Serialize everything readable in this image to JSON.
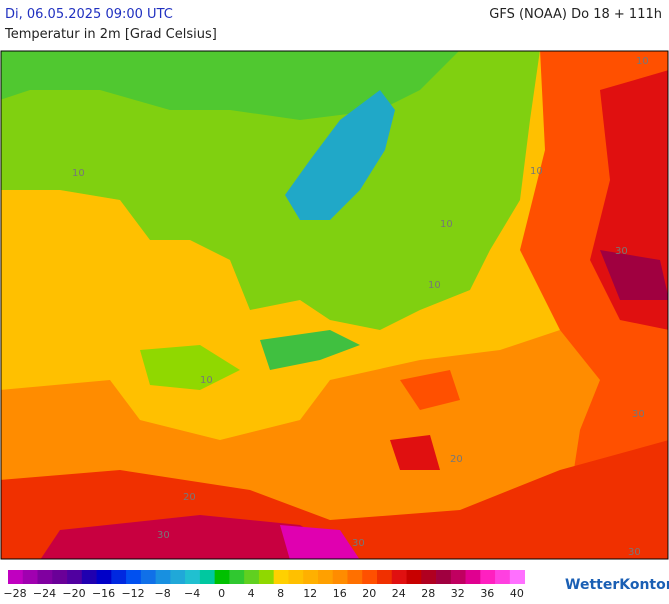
{
  "header": {
    "datetime": "Di, 06.05.2025 09:00 UTC",
    "model": "GFS (NOAA) Do 18 + 111h",
    "subtitle": "Temperatur in 2m [Grad Celsius]"
  },
  "map": {
    "contour_labels": [
      10,
      10,
      10,
      10,
      10,
      10,
      20,
      20,
      30,
      30,
      30,
      30,
      30
    ]
  },
  "legend": {
    "labels": [
      "−28",
      "−24",
      "−20",
      "−16",
      "−12",
      "−8",
      "−4",
      "0",
      "4",
      "8",
      "12",
      "16",
      "20",
      "24",
      "28",
      "32",
      "36",
      "40"
    ],
    "colors": [
      "#c000c0",
      "#a000b0",
      "#8000a0",
      "#6a0098",
      "#5000a0",
      "#2000b0",
      "#0000c8",
      "#0028e0",
      "#0050f0",
      "#1070e8",
      "#1890e0",
      "#20a8d8",
      "#20c0d0",
      "#00c8a0",
      "#00c000",
      "#30c830",
      "#60d020",
      "#90d800",
      "#ffd000",
      "#ffc000",
      "#ffb000",
      "#ffa000",
      "#ff8c00",
      "#ff7000",
      "#ff5000",
      "#f03000",
      "#e01010",
      "#c80000",
      "#b00020",
      "#a00040",
      "#c00060",
      "#e00090",
      "#ff20c0",
      "#ff40e0",
      "#ff70ff"
    ]
  },
  "logo": "WetterKontor"
}
